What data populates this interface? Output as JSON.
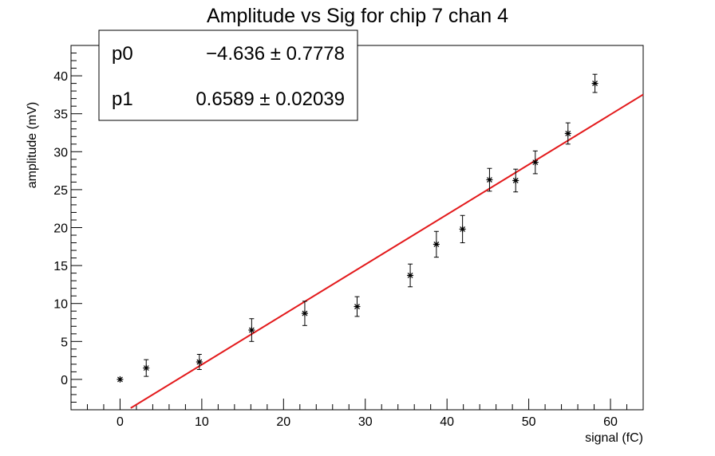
{
  "chart_data": {
    "type": "scatter",
    "title": "Amplitude vs Sig for chip 7 chan 4",
    "xlabel": "signal (fC)",
    "ylabel": "amplitude (mV)",
    "xlim": [
      -6,
      64
    ],
    "ylim": [
      -4,
      44
    ],
    "x_ticks": [
      0,
      10,
      20,
      30,
      40,
      50,
      60
    ],
    "y_ticks": [
      0,
      5,
      10,
      15,
      20,
      25,
      30,
      35,
      40
    ],
    "grid": false,
    "points": [
      {
        "x": 0.0,
        "y": 0.0,
        "err": 0.0
      },
      {
        "x": 3.2,
        "y": 1.5,
        "err": 1.1
      },
      {
        "x": 9.7,
        "y": 2.3,
        "err": 1.0
      },
      {
        "x": 16.1,
        "y": 6.5,
        "err": 1.5
      },
      {
        "x": 22.6,
        "y": 8.7,
        "err": 1.6
      },
      {
        "x": 29.0,
        "y": 9.6,
        "err": 1.3
      },
      {
        "x": 35.5,
        "y": 13.7,
        "err": 1.5
      },
      {
        "x": 38.7,
        "y": 17.8,
        "err": 1.7
      },
      {
        "x": 41.9,
        "y": 19.8,
        "err": 1.8
      },
      {
        "x": 45.2,
        "y": 26.3,
        "err": 1.5
      },
      {
        "x": 48.4,
        "y": 26.2,
        "err": 1.5
      },
      {
        "x": 50.8,
        "y": 28.6,
        "err": 1.5
      },
      {
        "x": 54.8,
        "y": 32.4,
        "err": 1.4
      },
      {
        "x": 58.1,
        "y": 39.0,
        "err": 1.2
      }
    ],
    "fit": {
      "p0": -4.636,
      "p1": 0.6589,
      "x_start": 1.3,
      "x_end": 64,
      "color": "#e31a1c"
    },
    "stats_box": {
      "rows": [
        {
          "name": "p0",
          "value": "−4.636 ± 0.7778"
        },
        {
          "name": "p1",
          "value": "0.6589 ± 0.02039"
        }
      ],
      "placement": "top-left"
    }
  }
}
